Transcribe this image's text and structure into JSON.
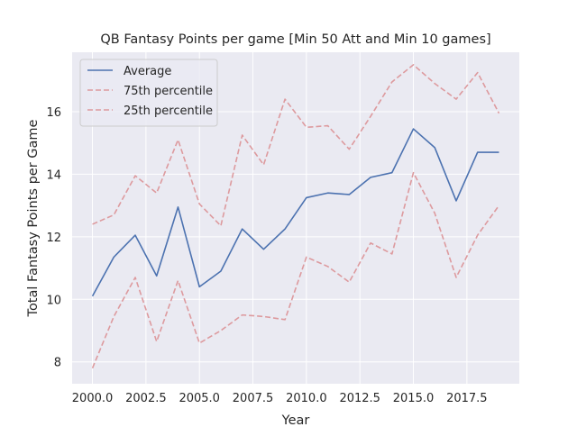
{
  "chart_data": {
    "type": "line",
    "title": "QB Fantasy Points per game [Min 50 Att and Min 10 games]",
    "xlabel": "Year",
    "ylabel": "Total Fantasy Points per Game",
    "xlim": [
      1999.05,
      2019.95
    ],
    "ylim": [
      7.3,
      17.9
    ],
    "xticks": [
      2000,
      2002.5,
      2005,
      2007.5,
      2010,
      2012.5,
      2015,
      2017.5
    ],
    "xtick_labels": [
      "2000.0",
      "2002.5",
      "2005.0",
      "2007.5",
      "2010.0",
      "2012.5",
      "2015.0",
      "2017.5"
    ],
    "yticks": [
      8,
      10,
      12,
      14,
      16
    ],
    "ytick_labels": [
      "8",
      "10",
      "12",
      "14",
      "16"
    ],
    "grid": true,
    "legend_position": "top-left",
    "x": [
      2000,
      2001,
      2002,
      2003,
      2004,
      2005,
      2006,
      2007,
      2008,
      2009,
      2010,
      2011,
      2012,
      2013,
      2014,
      2015,
      2016,
      2017,
      2018,
      2019
    ],
    "series": [
      {
        "name": "Average",
        "style": "solid",
        "color": "#4c72b0",
        "values": [
          10.1,
          11.35,
          12.05,
          10.75,
          12.95,
          10.4,
          10.9,
          12.25,
          11.6,
          12.25,
          13.25,
          13.4,
          13.35,
          13.9,
          14.05,
          15.45,
          14.85,
          13.15,
          14.7,
          14.7
        ]
      },
      {
        "name": "75th percentile",
        "style": "dashed",
        "color": "#dd9a9e",
        "values": [
          12.4,
          12.7,
          13.95,
          13.4,
          15.1,
          13.05,
          12.35,
          15.25,
          14.3,
          16.4,
          15.5,
          15.55,
          14.8,
          15.85,
          16.95,
          17.5,
          16.9,
          16.4,
          17.25,
          15.95
        ]
      },
      {
        "name": "25th percentile",
        "style": "dashed",
        "color": "#dd9a9e",
        "values": [
          7.8,
          9.45,
          10.7,
          8.65,
          10.6,
          8.6,
          9.0,
          9.5,
          9.45,
          9.35,
          11.35,
          11.05,
          10.55,
          11.8,
          11.45,
          14.05,
          12.75,
          10.7,
          12.05,
          13.0
        ]
      }
    ]
  },
  "colors": {
    "plot_background": "#eaeaf2",
    "gridline": "#ffffff",
    "text": "#262626"
  }
}
